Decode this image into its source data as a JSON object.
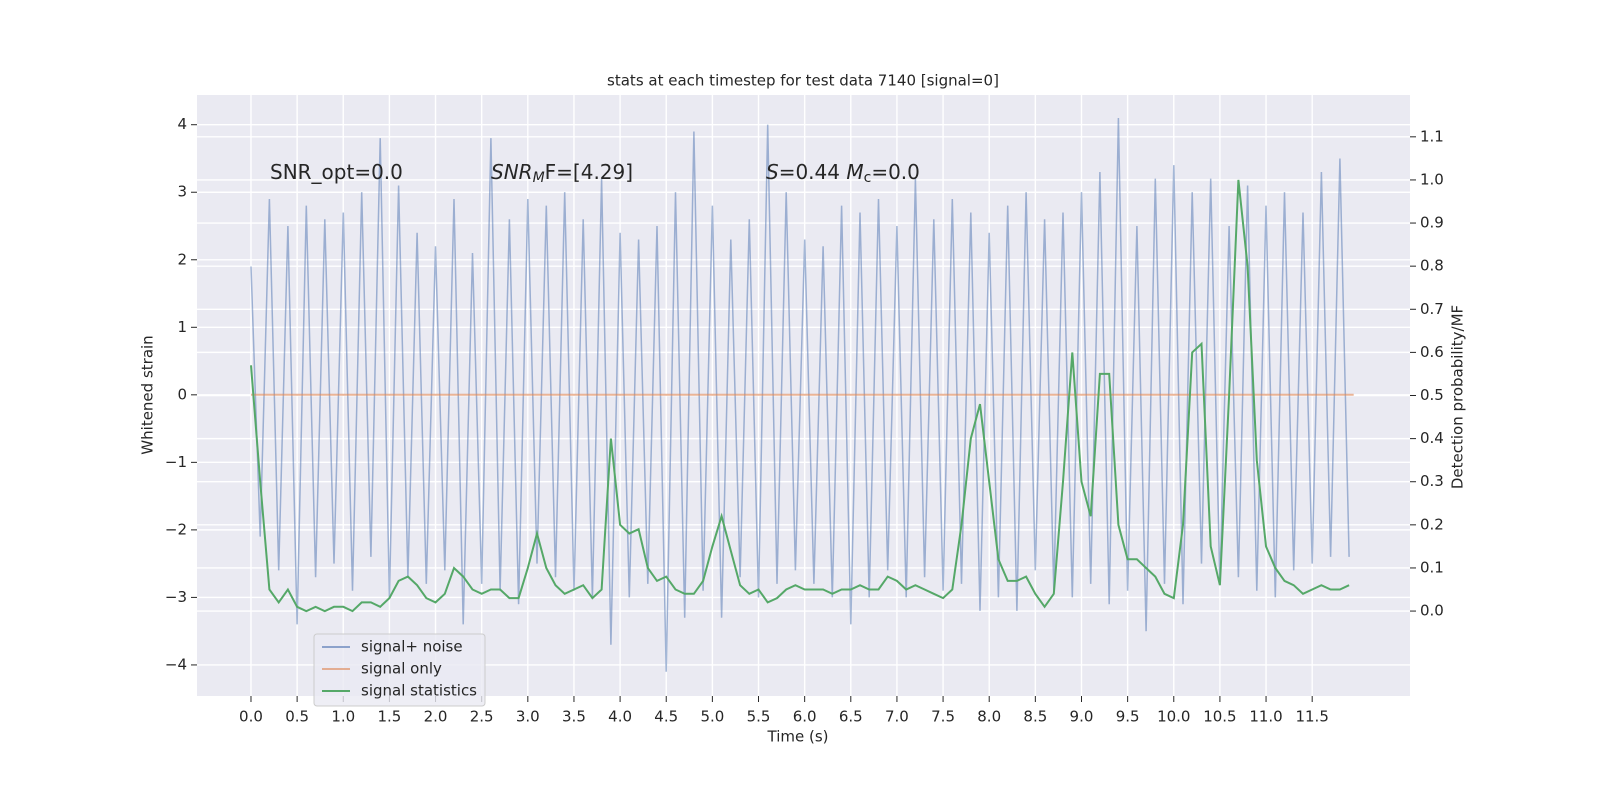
{
  "chart_data": {
    "type": "line",
    "title": "stats at each timestep for test data 7140 [signal=0]",
    "xlabel": "Time (s)",
    "ylabel": "Whitened strain",
    "y2label": "Detection probability/MF",
    "annotations": [
      [
        "SNR_opt=0.0"
      ],
      [
        "SNR",
        "M",
        "F=[4.29]"
      ],
      [
        "S",
        "=0.44   ",
        "M",
        "c",
        "=0.0"
      ]
    ],
    "xlim": [
      -0.585,
      12.56
    ],
    "ylim": [
      -4.46,
      4.44
    ],
    "y2lim": [
      -0.197,
      1.197
    ],
    "xticks": [
      {
        "value": 0,
        "label": "0.0"
      },
      0.5,
      {
        "value": 1,
        "label": "1.0"
      },
      1.5,
      {
        "value": 2,
        "label": "2.0"
      },
      2.5,
      {
        "value": 3,
        "label": "3.0"
      },
      3.5,
      {
        "value": 4,
        "label": "4.0"
      },
      4.5,
      {
        "value": 5,
        "label": "5.0"
      },
      5.5,
      {
        "value": 6,
        "label": "6.0"
      },
      6.5,
      {
        "value": 7,
        "label": "7.0"
      },
      7.5,
      {
        "value": 8,
        "label": "8.0"
      },
      8.5,
      {
        "value": 9,
        "label": "9.0"
      },
      9.5,
      {
        "value": 10,
        "label": "10.0"
      },
      10.5,
      {
        "value": 11,
        "label": "11.0"
      },
      11.5
    ],
    "yticks": [
      {
        "value": -4,
        "label": "−4"
      },
      {
        "value": -3,
        "label": "−3"
      },
      {
        "value": -2,
        "label": "−2"
      },
      {
        "value": -1,
        "label": "−1"
      },
      0,
      1,
      2,
      3,
      4
    ],
    "y2ticks": [
      {
        "value": 0,
        "label": "0.0"
      },
      0.1,
      0.2,
      0.3,
      0.4,
      0.5,
      0.6,
      0.7,
      0.8,
      0.9,
      {
        "value": 1,
        "label": "1.0"
      },
      1.1
    ],
    "grid": true,
    "legend": "lower left",
    "x": [
      0.0,
      0.1,
      0.2,
      0.3,
      0.4,
      0.5,
      0.6,
      0.7,
      0.8,
      0.9,
      1.0,
      1.1,
      1.2,
      1.3,
      1.4,
      1.5,
      1.6,
      1.7,
      1.8,
      1.9,
      2.0,
      2.1,
      2.2,
      2.3,
      2.4,
      2.5,
      2.6,
      2.7,
      2.8,
      2.9,
      3.0,
      3.1,
      3.2,
      3.3,
      3.4,
      3.5,
      3.6,
      3.7,
      3.8,
      3.9,
      4.0,
      4.1,
      4.2,
      4.3,
      4.4,
      4.5,
      4.6,
      4.7,
      4.8,
      4.9,
      5.0,
      5.1,
      5.2,
      5.3,
      5.4,
      5.5,
      5.6,
      5.7,
      5.8,
      5.9,
      6.0,
      6.1,
      6.2,
      6.3,
      6.4,
      6.5,
      6.6,
      6.7,
      6.8,
      6.9,
      7.0,
      7.1,
      7.2,
      7.3,
      7.4,
      7.5,
      7.6,
      7.7,
      7.8,
      7.9,
      8.0,
      8.1,
      8.2,
      8.3,
      8.4,
      8.5,
      8.6,
      8.7,
      8.8,
      8.9,
      9.0,
      9.1,
      9.2,
      9.3,
      9.4,
      9.5,
      9.6,
      9.7,
      9.8,
      9.9,
      10.0,
      10.1,
      10.2,
      10.3,
      10.4,
      10.5,
      10.6,
      10.7,
      10.8,
      10.9,
      11.0,
      11.1,
      11.2,
      11.3,
      11.4,
      11.5,
      11.6,
      11.7,
      11.8,
      11.9
    ],
    "series": [
      {
        "name": "signal+ noise",
        "color": "#4c72b0",
        "values": [
          1.9,
          -2.1,
          2.9,
          -2.6,
          2.5,
          -3.4,
          2.8,
          -2.7,
          2.6,
          -2.5,
          2.7,
          -2.9,
          3.0,
          -2.4,
          3.8,
          -3.0,
          3.1,
          -2.7,
          2.4,
          -2.8,
          2.2,
          -2.6,
          2.9,
          -3.4,
          2.1,
          -2.8,
          3.8,
          -2.9,
          2.6,
          -3.1,
          2.9,
          -2.5,
          2.8,
          -2.7,
          3.0,
          -2.9,
          2.6,
          -3.0,
          3.2,
          -3.7,
          2.4,
          -3.0,
          2.3,
          -2.8,
          2.5,
          -4.1,
          3.0,
          -3.3,
          3.9,
          -2.9,
          2.8,
          -3.3,
          2.3,
          -2.7,
          2.6,
          -3.0,
          4.0,
          -2.8,
          3.0,
          -2.6,
          2.3,
          -2.8,
          2.2,
          -3.0,
          2.8,
          -3.4,
          2.7,
          -3.0,
          2.9,
          -2.6,
          2.5,
          -3.0,
          3.2,
          -2.7,
          2.6,
          -2.9,
          2.9,
          -2.8,
          2.7,
          -3.2,
          2.4,
          -3.0,
          2.8,
          -3.2,
          3.0,
          -2.6,
          2.6,
          -2.9,
          2.7,
          -3.0,
          3.0,
          -2.8,
          3.3,
          -3.1,
          4.1,
          -2.9,
          2.5,
          -3.5,
          3.2,
          -2.8,
          3.4,
          -3.1,
          3.0,
          -2.5,
          3.2,
          -2.8,
          2.5,
          -2.7,
          3.1,
          -2.9,
          2.8,
          -3.0,
          3.0,
          -2.6,
          2.7,
          -2.5,
          3.3,
          -2.4,
          3.5,
          -2.4
        ]
      },
      {
        "name": "signal only",
        "color": "#dd8452",
        "x": [
          0.0,
          11.95
        ],
        "values": [
          0,
          0
        ]
      },
      {
        "name": "signal statistics",
        "color": "#55a868",
        "axis": "y2",
        "values": [
          0.57,
          0.3,
          0.05,
          0.02,
          0.05,
          0.01,
          0.0,
          0.01,
          0.0,
          0.01,
          0.01,
          0.0,
          0.02,
          0.02,
          0.01,
          0.03,
          0.07,
          0.08,
          0.06,
          0.03,
          0.02,
          0.04,
          0.1,
          0.08,
          0.05,
          0.04,
          0.05,
          0.05,
          0.03,
          0.03,
          0.1,
          0.18,
          0.1,
          0.06,
          0.04,
          0.05,
          0.06,
          0.03,
          0.05,
          0.4,
          0.2,
          0.18,
          0.19,
          0.1,
          0.07,
          0.08,
          0.05,
          0.04,
          0.04,
          0.07,
          0.15,
          0.22,
          0.14,
          0.06,
          0.04,
          0.05,
          0.02,
          0.03,
          0.05,
          0.06,
          0.05,
          0.05,
          0.05,
          0.04,
          0.05,
          0.05,
          0.06,
          0.05,
          0.05,
          0.08,
          0.07,
          0.05,
          0.06,
          0.05,
          0.04,
          0.03,
          0.05,
          0.2,
          0.4,
          0.48,
          0.3,
          0.12,
          0.07,
          0.07,
          0.08,
          0.04,
          0.01,
          0.04,
          0.3,
          0.6,
          0.3,
          0.22,
          0.55,
          0.55,
          0.2,
          0.12,
          0.12,
          0.1,
          0.08,
          0.04,
          0.03,
          0.2,
          0.6,
          0.62,
          0.15,
          0.06,
          0.5,
          1.0,
          0.8,
          0.35,
          0.15,
          0.1,
          0.07,
          0.06,
          0.04,
          0.05,
          0.06,
          0.05,
          0.05,
          0.06
        ]
      }
    ]
  }
}
